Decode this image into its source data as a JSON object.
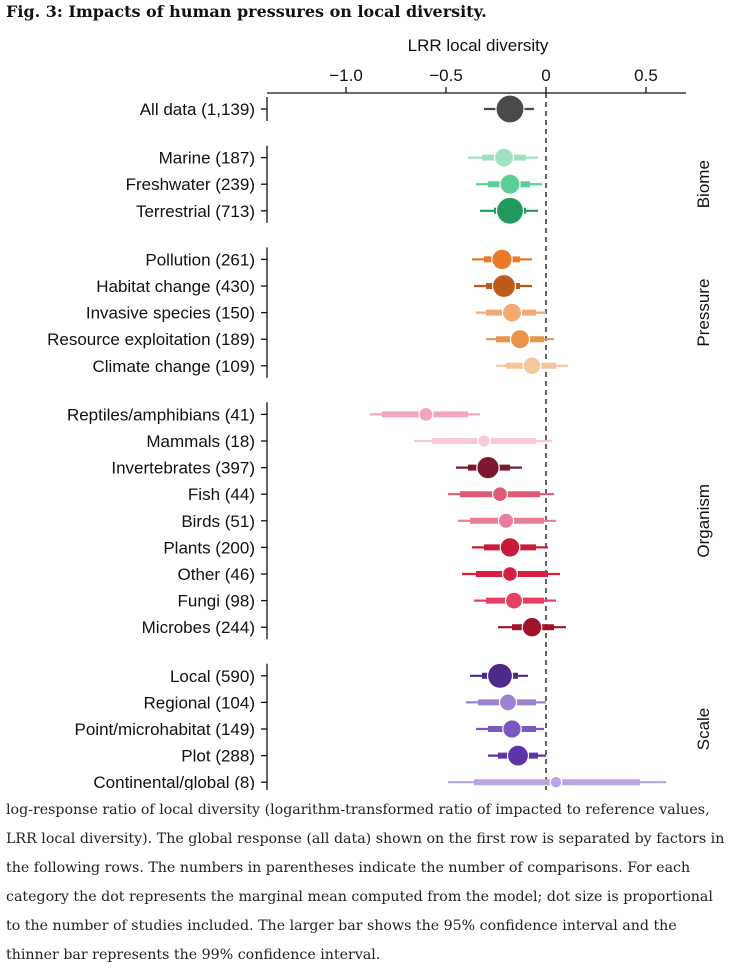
{
  "figure": {
    "title": "Fig. 3: Impacts of human pressures on local diversity.",
    "caption": "log-response ratio of local diversity (logarithm-transformed ratio of impacted to reference values, LRR local diversity). The global response (all data) shown on the first row is separated by factors in the following rows. The numbers in parentheses indicate the number of comparisons. For each category the dot represents the marginal mean computed from the model; dot size is proportional to the number of studies included. The larger bar shows the 95% confidence interval and the thinner bar represents the 99% confidence interval."
  },
  "chart_data": {
    "type": "forest",
    "title": "",
    "xlabel": "LRR local diversity",
    "xlim": [
      -1.38,
      0.7
    ],
    "xticks": [
      {
        "value": -1.0,
        "label": "−1.0"
      },
      {
        "value": -0.5,
        "label": "−0.5"
      },
      {
        "value": 0,
        "label": "0"
      },
      {
        "value": 0.5,
        "label": "0.5"
      }
    ],
    "reference_line": 0,
    "groups": [
      {
        "name": "",
        "rows": [
          {
            "label": "All data (1,139)",
            "mean": -0.18,
            "ci95": [
              -0.24,
              -0.12
            ],
            "ci99": [
              -0.31,
              -0.06
            ],
            "size": 1.0,
            "color": "#4a4a4a"
          }
        ]
      },
      {
        "name": "Biome",
        "rows": [
          {
            "label": "Marine (187)",
            "mean": -0.21,
            "ci95": [
              -0.32,
              -0.1
            ],
            "ci99": [
              -0.39,
              -0.04
            ],
            "size": 0.55,
            "color": "#a3e0c3"
          },
          {
            "label": "Freshwater (239)",
            "mean": -0.18,
            "ci95": [
              -0.29,
              -0.08
            ],
            "ci99": [
              -0.35,
              -0.02
            ],
            "size": 0.6,
            "color": "#5bcf98"
          },
          {
            "label": "Terrestrial (713)",
            "mean": -0.18,
            "ci95": [
              -0.26,
              -0.1
            ],
            "ci99": [
              -0.33,
              -0.04
            ],
            "size": 0.95,
            "color": "#1f9a5a"
          }
        ]
      },
      {
        "name": "Pressure",
        "rows": [
          {
            "label": "Pollution (261)",
            "mean": -0.22,
            "ci95": [
              -0.31,
              -0.13
            ],
            "ci99": [
              -0.37,
              -0.07
            ],
            "size": 0.62,
            "color": "#ea7a2a"
          },
          {
            "label": "Habitat change (430)",
            "mean": -0.21,
            "ci95": [
              -0.3,
              -0.13
            ],
            "ci99": [
              -0.36,
              -0.07
            ],
            "size": 0.75,
            "color": "#bc5a1c"
          },
          {
            "label": "Invasive species (150)",
            "mean": -0.17,
            "ci95": [
              -0.3,
              -0.05
            ],
            "ci99": [
              -0.35,
              0.0
            ],
            "size": 0.55,
            "color": "#f1aa72"
          },
          {
            "label": "Resource exploitation (189)",
            "mean": -0.13,
            "ci95": [
              -0.25,
              -0.01
            ],
            "ci99": [
              -0.3,
              0.04
            ],
            "size": 0.55,
            "color": "#e8954a"
          },
          {
            "label": "Climate change (109)",
            "mean": -0.07,
            "ci95": [
              -0.2,
              0.05
            ],
            "ci99": [
              -0.25,
              0.11
            ],
            "size": 0.48,
            "color": "#f4c79b"
          }
        ]
      },
      {
        "name": "Organism",
        "rows": [
          {
            "label": "Reptiles/amphibians (41)",
            "mean": -0.6,
            "ci95": [
              -0.82,
              -0.39
            ],
            "ci99": [
              -0.88,
              -0.33
            ],
            "size": 0.3,
            "color": "#f0a6bd"
          },
          {
            "label": "Mammals (18)",
            "mean": -0.31,
            "ci95": [
              -0.57,
              -0.05
            ],
            "ci99": [
              -0.66,
              0.03
            ],
            "size": 0.22,
            "color": "#f6cad7"
          },
          {
            "label": "Invertebrates (397)",
            "mean": -0.29,
            "ci95": [
              -0.39,
              -0.18
            ],
            "ci99": [
              -0.45,
              -0.12
            ],
            "size": 0.72,
            "color": "#7e1730"
          },
          {
            "label": "Fish (44)",
            "mean": -0.23,
            "ci95": [
              -0.43,
              -0.03
            ],
            "ci99": [
              -0.49,
              0.04
            ],
            "size": 0.34,
            "color": "#e05a75"
          },
          {
            "label": "Birds (51)",
            "mean": -0.2,
            "ci95": [
              -0.38,
              -0.01
            ],
            "ci99": [
              -0.44,
              0.05
            ],
            "size": 0.36,
            "color": "#e87e98"
          },
          {
            "label": "Plants (200)",
            "mean": -0.18,
            "ci95": [
              -0.31,
              -0.05
            ],
            "ci99": [
              -0.37,
              0.01
            ],
            "size": 0.58,
            "color": "#c81d3a"
          },
          {
            "label": "Other (46)",
            "mean": -0.18,
            "ci95": [
              -0.35,
              0.01
            ],
            "ci99": [
              -0.42,
              0.07
            ],
            "size": 0.34,
            "color": "#d81f3f"
          },
          {
            "label": "Fungi (98)",
            "mean": -0.16,
            "ci95": [
              -0.3,
              -0.01
            ],
            "ci99": [
              -0.36,
              0.05
            ],
            "size": 0.45,
            "color": "#e54062"
          },
          {
            "label": "Microbes (244)",
            "mean": -0.07,
            "ci95": [
              -0.17,
              0.04
            ],
            "ci99": [
              -0.24,
              0.1
            ],
            "size": 0.58,
            "color": "#a2122b"
          }
        ]
      },
      {
        "name": "Scale",
        "rows": [
          {
            "label": "Local (590)",
            "mean": -0.23,
            "ci95": [
              -0.32,
              -0.14
            ],
            "ci99": [
              -0.38,
              -0.09
            ],
            "size": 0.85,
            "color": "#4b2a8a"
          },
          {
            "label": "Regional (104)",
            "mean": -0.19,
            "ci95": [
              -0.34,
              -0.05
            ],
            "ci99": [
              -0.4,
              0.0
            ],
            "size": 0.45,
            "color": "#9b83d2"
          },
          {
            "label": "Point/microhabitat (149)",
            "mean": -0.17,
            "ci95": [
              -0.29,
              -0.05
            ],
            "ci99": [
              -0.35,
              -0.01
            ],
            "size": 0.52,
            "color": "#7a58c0"
          },
          {
            "label": "Plot (288)",
            "mean": -0.14,
            "ci95": [
              -0.24,
              -0.04
            ],
            "ci99": [
              -0.29,
              0.0
            ],
            "size": 0.65,
            "color": "#5d33aa"
          },
          {
            "label": "Continental/global (8)",
            "mean": 0.05,
            "ci95": [
              -0.36,
              0.47
            ],
            "ci99": [
              -0.49,
              0.6
            ],
            "size": 0.18,
            "color": "#b9a6e0"
          }
        ]
      }
    ]
  }
}
